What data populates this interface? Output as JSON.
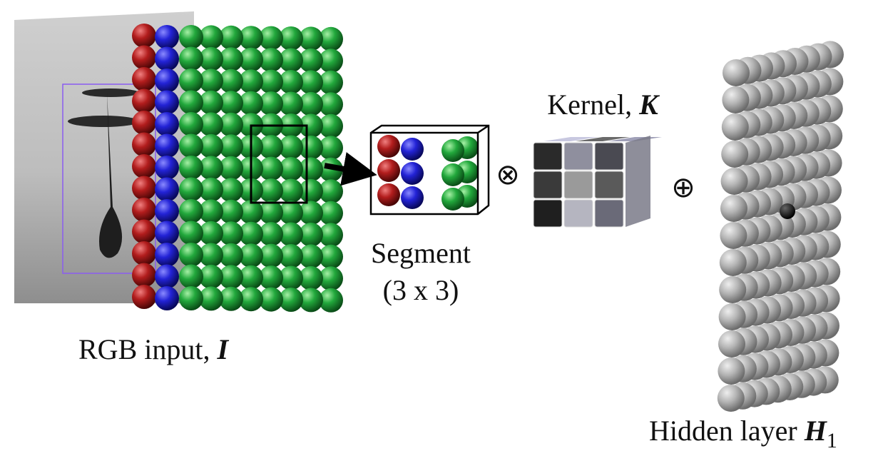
{
  "rgb_input": {
    "label": "RGB input,",
    "symbol": "I"
  },
  "segment": {
    "label": "Segment",
    "size": "(3 x 3)"
  },
  "kernel": {
    "label": "Kernel,",
    "symbol": "K"
  },
  "operators": {
    "convolution": "⊗",
    "addition": "⊕"
  },
  "hidden_layer": {
    "label": "Hidden layer",
    "symbol": "H",
    "subscript": "1"
  }
}
